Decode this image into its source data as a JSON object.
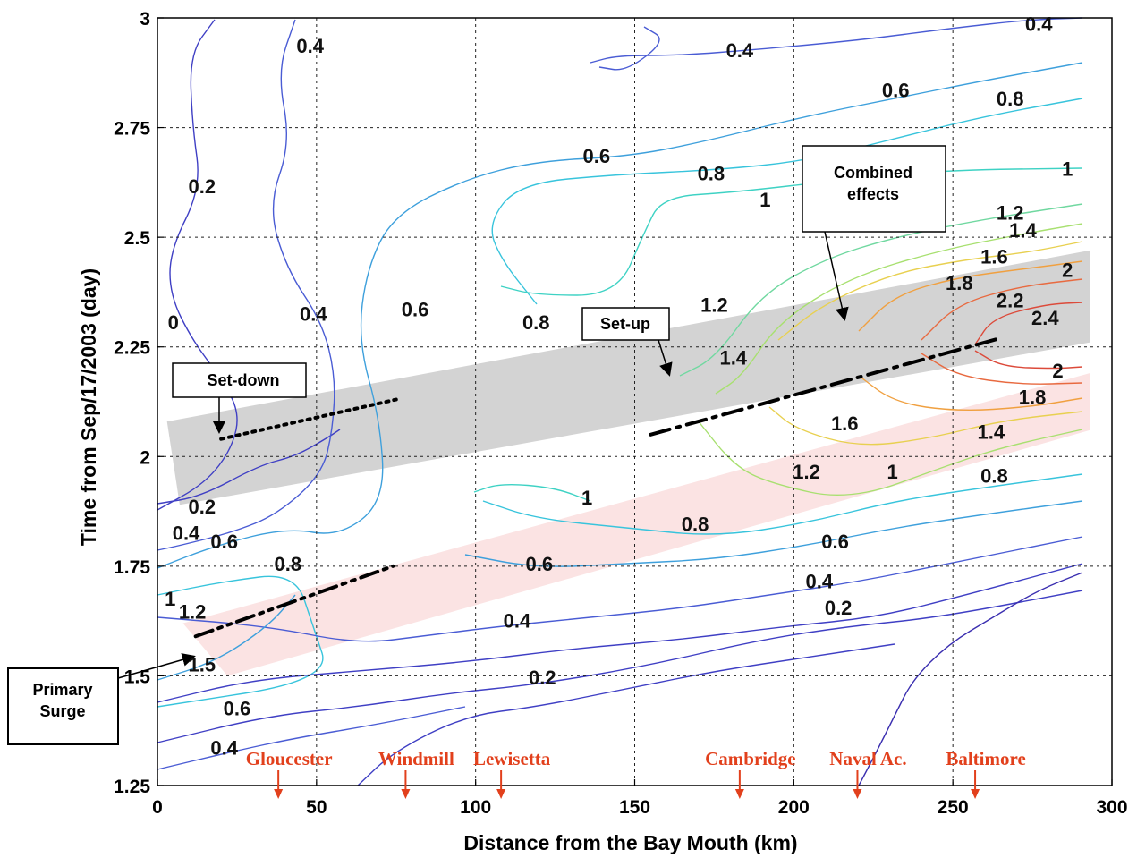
{
  "chart_data": {
    "type": "contour",
    "xlabel": "Distance from the Bay Mouth (km)",
    "ylabel": "Time from Sep/17/2003 (day)",
    "xlim": [
      0,
      300
    ],
    "ylim": [
      1.25,
      3
    ],
    "x_ticks": [
      0,
      50,
      100,
      150,
      200,
      250,
      300
    ],
    "y_ticks": [
      1.25,
      1.5,
      1.75,
      2,
      2.25,
      2.5,
      2.75,
      3
    ],
    "grid": true,
    "contour_levels": [
      {
        "level": 0,
        "label": "0",
        "color": "#3b2fb0"
      },
      {
        "level": 0.2,
        "label": "0.2",
        "color": "#3f3fc4"
      },
      {
        "level": 0.4,
        "label": "0.4",
        "color": "#4a5cd4"
      },
      {
        "level": 0.6,
        "label": "0.6",
        "color": "#3ea0dc"
      },
      {
        "level": 0.8,
        "label": "0.8",
        "color": "#38c4dc"
      },
      {
        "level": 1,
        "label": "1",
        "color": "#3ed2c4"
      },
      {
        "level": 1.2,
        "label": "1.2",
        "color": "#70d8a0"
      },
      {
        "level": 1.4,
        "label": "1.4",
        "color": "#a8e070"
      },
      {
        "level": 1.6,
        "label": "1.6",
        "color": "#e8d050"
      },
      {
        "level": 1.8,
        "label": "1.8",
        "color": "#f0a040"
      },
      {
        "level": 2,
        "label": "2",
        "color": "#e86a40"
      },
      {
        "level": 2.2,
        "label": "2.2",
        "color": "#dc4a3a"
      },
      {
        "level": 2.4,
        "label": "2.4",
        "color": "#c83232"
      }
    ],
    "contour_labels": [
      {
        "text": "0.4",
        "x": 48,
        "y": 2.92
      },
      {
        "text": "0.4",
        "x": 183,
        "y": 2.91
      },
      {
        "text": "0.4",
        "x": 277,
        "y": 2.97
      },
      {
        "text": "0.6",
        "x": 232,
        "y": 2.82
      },
      {
        "text": "0.8",
        "x": 268,
        "y": 2.8
      },
      {
        "text": "0.6",
        "x": 138,
        "y": 2.67
      },
      {
        "text": "0.8",
        "x": 174,
        "y": 2.63
      },
      {
        "text": "1",
        "x": 191,
        "y": 2.57
      },
      {
        "text": "1",
        "x": 286,
        "y": 2.64
      },
      {
        "text": "0.2",
        "x": 14,
        "y": 2.6
      },
      {
        "text": "1.2",
        "x": 268,
        "y": 2.54
      },
      {
        "text": "1.4",
        "x": 272,
        "y": 2.5
      },
      {
        "text": "1.6",
        "x": 263,
        "y": 2.44
      },
      {
        "text": "1.8",
        "x": 252,
        "y": 2.38
      },
      {
        "text": "2",
        "x": 286,
        "y": 2.41
      },
      {
        "text": "2.2",
        "x": 268,
        "y": 2.34
      },
      {
        "text": "2.4",
        "x": 279,
        "y": 2.3
      },
      {
        "text": "0",
        "x": 5,
        "y": 2.29
      },
      {
        "text": "0.4",
        "x": 49,
        "y": 2.31
      },
      {
        "text": "0.6",
        "x": 81,
        "y": 2.32
      },
      {
        "text": "0.8",
        "x": 119,
        "y": 2.29
      },
      {
        "text": "1.2",
        "x": 175,
        "y": 2.33
      },
      {
        "text": "1.4",
        "x": 181,
        "y": 2.21
      },
      {
        "text": "2",
        "x": 283,
        "y": 2.18
      },
      {
        "text": "1.8",
        "x": 275,
        "y": 2.12
      },
      {
        "text": "1.6",
        "x": 216,
        "y": 2.06
      },
      {
        "text": "1.4",
        "x": 262,
        "y": 2.04
      },
      {
        "text": "1.2",
        "x": 204,
        "y": 1.95
      },
      {
        "text": "1",
        "x": 231,
        "y": 1.95
      },
      {
        "text": "0.8",
        "x": 263,
        "y": 1.94
      },
      {
        "text": "1",
        "x": 135,
        "y": 1.89
      },
      {
        "text": "0.8",
        "x": 169,
        "y": 1.83
      },
      {
        "text": "0.6",
        "x": 213,
        "y": 1.79
      },
      {
        "text": "0.2",
        "x": 14,
        "y": 1.87
      },
      {
        "text": "0.4",
        "x": 9,
        "y": 1.81
      },
      {
        "text": "0.6",
        "x": 21,
        "y": 1.79
      },
      {
        "text": "0.8",
        "x": 41,
        "y": 1.74
      },
      {
        "text": "0.6",
        "x": 120,
        "y": 1.74
      },
      {
        "text": "0.4",
        "x": 208,
        "y": 1.7
      },
      {
        "text": "1",
        "x": 4,
        "y": 1.66
      },
      {
        "text": "1.2",
        "x": 11,
        "y": 1.63
      },
      {
        "text": "0.2",
        "x": 214,
        "y": 1.64
      },
      {
        "text": "0.4",
        "x": 113,
        "y": 1.61
      },
      {
        "text": "1.5",
        "x": 14,
        "y": 1.51
      },
      {
        "text": "0.2",
        "x": 121,
        "y": 1.48
      },
      {
        "text": "0.6",
        "x": 25,
        "y": 1.41
      },
      {
        "text": "0.4",
        "x": 21,
        "y": 1.32
      }
    ],
    "bands": [
      {
        "name": "gray",
        "points": [
          [
            3,
            2.08
          ],
          [
            293,
            2.47
          ],
          [
            293,
            2.26
          ],
          [
            7,
            1.89
          ]
        ]
      },
      {
        "name": "pink",
        "points": [
          [
            8,
            1.62
          ],
          [
            293,
            2.19
          ],
          [
            293,
            2.06
          ],
          [
            22,
            1.5
          ]
        ]
      }
    ],
    "annotations": [
      {
        "text": "Set-down",
        "x": 20,
        "y": 2.04,
        "x2": 75,
        "y2": 2.13,
        "style": "dotted"
      },
      {
        "text": "Set-up",
        "x": 155,
        "y": 2.05,
        "x2": 265,
        "y2": 2.27,
        "style": "dashdot"
      },
      {
        "text": "Combined effects",
        "style": "arrow"
      },
      {
        "text": "Primary Surge",
        "x": 12,
        "y": 1.59,
        "x2": 74,
        "y2": 1.75,
        "style": "dashdotdot"
      }
    ],
    "stations": [
      {
        "name": "Gloucester",
        "x": 38
      },
      {
        "name": "Windmill",
        "x": 78
      },
      {
        "name": "Lewisetta",
        "x": 108
      },
      {
        "name": "Cambridge",
        "x": 183
      },
      {
        "name": "Naval Ac.",
        "x": 220
      },
      {
        "name": "Baltimore",
        "x": 257
      }
    ],
    "station_color": "#e2401c"
  }
}
